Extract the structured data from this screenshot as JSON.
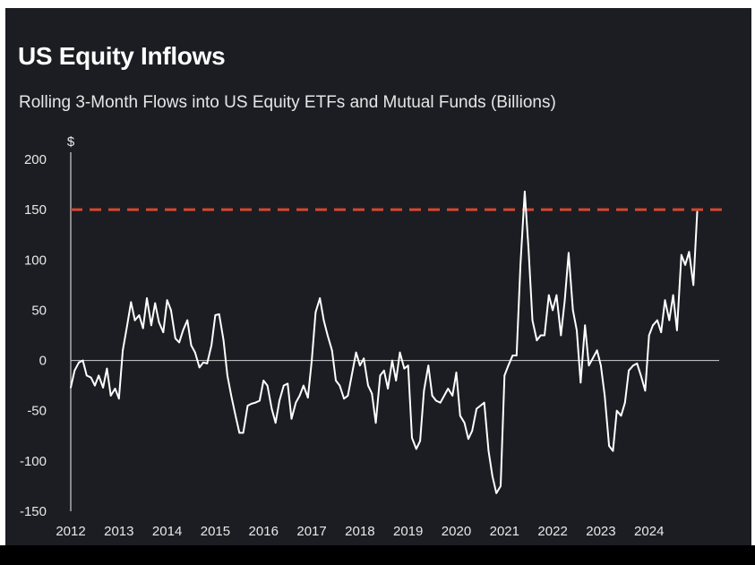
{
  "title": "US Equity Inflows",
  "subtitle": "Rolling 3-Month Flows into US Equity ETFs and Mutual Funds (Billions)",
  "colors": {
    "background": "#1c1d22",
    "line": "#ffffff",
    "reference_line": "#d9452f",
    "axis": "#d0d0d0",
    "text": "#e8e8e8"
  },
  "chart_data": {
    "type": "line",
    "title": "US Equity Inflows",
    "subtitle": "Rolling 3-Month Flows into US Equity ETFs and Mutual Funds (Billions)",
    "y_unit": "$",
    "xlabel": "",
    "ylabel": "",
    "xlim": [
      2012,
      2025.25
    ],
    "ylim": [
      -150,
      200
    ],
    "x_ticks": [
      2012,
      2013,
      2014,
      2015,
      2016,
      2017,
      2018,
      2019,
      2020,
      2021,
      2022,
      2023,
      2024
    ],
    "x_tick_labels": [
      "2012",
      "2013",
      "2014",
      "2015",
      "2016",
      "2017",
      "2018",
      "2019",
      "2020",
      "2021",
      "2022",
      "2023",
      "2024"
    ],
    "y_ticks": [
      -150,
      -100,
      -50,
      0,
      50,
      100,
      150,
      200
    ],
    "y_tick_labels": [
      "-150",
      "-100",
      "-50",
      "0",
      "50",
      "100",
      "150",
      "200"
    ],
    "grid": false,
    "zero_line": true,
    "reference_line": {
      "y": 150,
      "style": "dashed"
    },
    "series": [
      {
        "values": [
          [
            2012.0,
            -27
          ],
          [
            2012.08,
            -10
          ],
          [
            2012.17,
            -2
          ],
          [
            2012.25,
            0
          ],
          [
            2012.33,
            -15
          ],
          [
            2012.42,
            -17
          ],
          [
            2012.5,
            -25
          ],
          [
            2012.58,
            -15
          ],
          [
            2012.67,
            -27
          ],
          [
            2012.75,
            -8
          ],
          [
            2012.83,
            -35
          ],
          [
            2012.92,
            -28
          ],
          [
            2013.0,
            -38
          ],
          [
            2013.08,
            10
          ],
          [
            2013.17,
            35
          ],
          [
            2013.25,
            58
          ],
          [
            2013.33,
            40
          ],
          [
            2013.42,
            45
          ],
          [
            2013.5,
            32
          ],
          [
            2013.58,
            62
          ],
          [
            2013.67,
            35
          ],
          [
            2013.75,
            57
          ],
          [
            2013.83,
            38
          ],
          [
            2013.92,
            28
          ],
          [
            2014.0,
            60
          ],
          [
            2014.08,
            50
          ],
          [
            2014.17,
            22
          ],
          [
            2014.25,
            18
          ],
          [
            2014.33,
            30
          ],
          [
            2014.42,
            40
          ],
          [
            2014.5,
            15
          ],
          [
            2014.58,
            8
          ],
          [
            2014.67,
            -7
          ],
          [
            2014.75,
            -2
          ],
          [
            2014.83,
            -3
          ],
          [
            2014.92,
            15
          ],
          [
            2015.0,
            45
          ],
          [
            2015.08,
            46
          ],
          [
            2015.17,
            20
          ],
          [
            2015.25,
            -15
          ],
          [
            2015.33,
            -35
          ],
          [
            2015.42,
            -55
          ],
          [
            2015.5,
            -72
          ],
          [
            2015.58,
            -72
          ],
          [
            2015.67,
            -45
          ],
          [
            2015.75,
            -43
          ],
          [
            2015.83,
            -42
          ],
          [
            2015.92,
            -40
          ],
          [
            2016.0,
            -20
          ],
          [
            2016.08,
            -25
          ],
          [
            2016.17,
            -48
          ],
          [
            2016.25,
            -62
          ],
          [
            2016.33,
            -40
          ],
          [
            2016.42,
            -25
          ],
          [
            2016.5,
            -23
          ],
          [
            2016.58,
            -58
          ],
          [
            2016.67,
            -42
          ],
          [
            2016.75,
            -35
          ],
          [
            2016.83,
            -25
          ],
          [
            2016.92,
            -37
          ],
          [
            2017.0,
            0
          ],
          [
            2017.08,
            48
          ],
          [
            2017.17,
            62
          ],
          [
            2017.25,
            40
          ],
          [
            2017.33,
            25
          ],
          [
            2017.42,
            10
          ],
          [
            2017.5,
            -20
          ],
          [
            2017.58,
            -25
          ],
          [
            2017.67,
            -38
          ],
          [
            2017.75,
            -35
          ],
          [
            2017.83,
            -15
          ],
          [
            2017.92,
            8
          ],
          [
            2018.0,
            -5
          ],
          [
            2018.08,
            2
          ],
          [
            2018.17,
            -25
          ],
          [
            2018.25,
            -33
          ],
          [
            2018.33,
            -62
          ],
          [
            2018.42,
            -15
          ],
          [
            2018.5,
            -10
          ],
          [
            2018.58,
            -28
          ],
          [
            2018.67,
            0
          ],
          [
            2018.75,
            -20
          ],
          [
            2018.83,
            8
          ],
          [
            2018.92,
            -8
          ],
          [
            2019.0,
            -5
          ],
          [
            2019.08,
            -77
          ],
          [
            2019.17,
            -88
          ],
          [
            2019.25,
            -80
          ],
          [
            2019.33,
            -30
          ],
          [
            2019.42,
            -5
          ],
          [
            2019.5,
            -35
          ],
          [
            2019.58,
            -40
          ],
          [
            2019.67,
            -42
          ],
          [
            2019.75,
            -35
          ],
          [
            2019.83,
            -28
          ],
          [
            2019.92,
            -35
          ],
          [
            2020.0,
            -12
          ],
          [
            2020.08,
            -55
          ],
          [
            2020.17,
            -62
          ],
          [
            2020.25,
            -78
          ],
          [
            2020.33,
            -70
          ],
          [
            2020.42,
            -48
          ],
          [
            2020.5,
            -45
          ],
          [
            2020.58,
            -42
          ],
          [
            2020.67,
            -90
          ],
          [
            2020.75,
            -115
          ],
          [
            2020.83,
            -132
          ],
          [
            2020.92,
            -125
          ],
          [
            2021.0,
            -15
          ],
          [
            2021.08,
            -5
          ],
          [
            2021.17,
            5
          ],
          [
            2021.25,
            5
          ],
          [
            2021.33,
            95
          ],
          [
            2021.42,
            168
          ],
          [
            2021.5,
            110
          ],
          [
            2021.58,
            40
          ],
          [
            2021.67,
            20
          ],
          [
            2021.75,
            25
          ],
          [
            2021.83,
            25
          ],
          [
            2021.92,
            65
          ],
          [
            2022.0,
            50
          ],
          [
            2022.08,
            65
          ],
          [
            2022.17,
            25
          ],
          [
            2022.25,
            60
          ],
          [
            2022.33,
            107
          ],
          [
            2022.42,
            50
          ],
          [
            2022.5,
            30
          ],
          [
            2022.58,
            -22
          ],
          [
            2022.67,
            35
          ],
          [
            2022.75,
            -5
          ],
          [
            2022.83,
            2
          ],
          [
            2022.92,
            10
          ],
          [
            2023.0,
            -5
          ],
          [
            2023.08,
            -35
          ],
          [
            2023.17,
            -85
          ],
          [
            2023.25,
            -90
          ],
          [
            2023.33,
            -50
          ],
          [
            2023.42,
            -55
          ],
          [
            2023.5,
            -42
          ],
          [
            2023.58,
            -10
          ],
          [
            2023.67,
            -5
          ],
          [
            2023.75,
            -3
          ],
          [
            2023.83,
            -15
          ],
          [
            2023.92,
            -30
          ],
          [
            2024.0,
            25
          ],
          [
            2024.08,
            35
          ],
          [
            2024.17,
            40
          ],
          [
            2024.25,
            28
          ],
          [
            2024.33,
            60
          ],
          [
            2024.42,
            40
          ],
          [
            2024.5,
            65
          ],
          [
            2024.58,
            30
          ],
          [
            2024.67,
            105
          ],
          [
            2024.75,
            95
          ],
          [
            2024.83,
            108
          ],
          [
            2024.92,
            75
          ],
          [
            2025.0,
            148
          ]
        ]
      }
    ]
  }
}
